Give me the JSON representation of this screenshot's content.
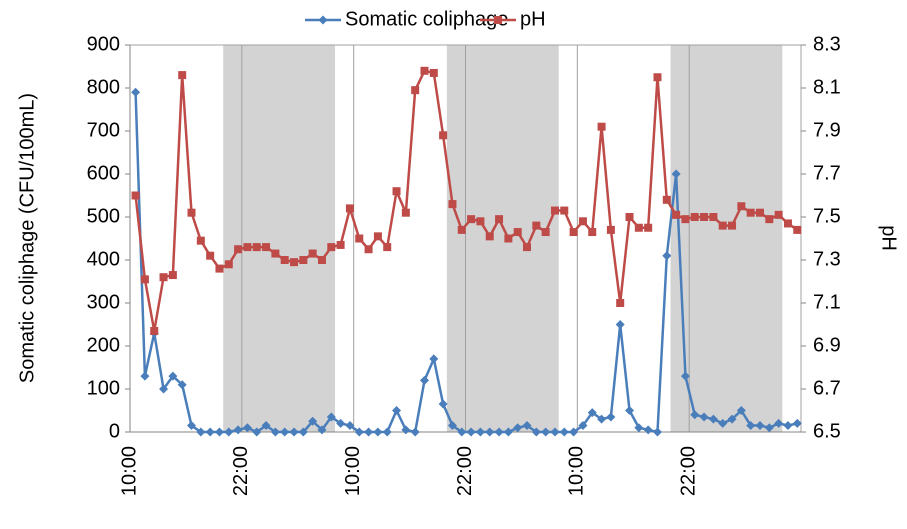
{
  "chart_data": {
    "type": "line",
    "y_label": "Somatic coliphage (CFU/100mL)",
    "y2_label": "pH",
    "x": [
      0.6,
      1.6,
      2.6,
      3.6,
      4.6,
      5.6,
      6.6,
      7.6,
      8.6,
      9.6,
      10.6,
      11.6,
      12.6,
      13.6,
      14.6,
      15.6,
      16.6,
      17.6,
      18.6,
      19.6,
      20.6,
      21.6,
      22.6,
      23.6,
      24.6,
      25.6,
      26.6,
      27.6,
      28.6,
      29.6,
      30.6,
      31.6,
      32.6,
      33.6,
      34.6,
      35.6,
      36.6,
      37.6,
      38.6,
      39.6,
      40.6,
      41.6,
      42.6,
      43.6,
      44.6,
      45.6,
      46.6,
      47.6,
      48.6,
      49.6,
      50.6,
      51.6,
      52.6,
      53.6,
      54.6,
      55.6,
      56.6,
      57.6,
      58.6,
      59.6,
      60.6,
      61.6,
      62.6,
      63.6,
      64.6,
      65.6,
      66.6,
      67.6,
      68.6,
      69.6,
      70.6,
      71.6
    ],
    "series": [
      {
        "name": "Somatic coliphage",
        "color": "#4a7ebb",
        "marker": "diamond",
        "values": [
          790,
          130,
          230,
          100,
          130,
          110,
          15,
          0,
          0,
          0,
          0,
          5,
          10,
          0,
          15,
          0,
          0,
          0,
          0,
          25,
          5,
          35,
          20,
          15,
          0,
          0,
          0,
          0,
          50,
          5,
          0,
          120,
          170,
          65,
          15,
          0,
          0,
          0,
          0,
          0,
          0,
          10,
          15,
          0,
          0,
          0,
          0,
          0,
          15,
          45,
          30,
          35,
          250,
          50,
          10,
          5,
          0,
          410,
          600,
          130,
          40,
          35,
          30,
          20,
          30,
          50,
          15,
          15,
          10,
          20,
          15,
          20
        ]
      },
      {
        "name": "pH",
        "color": "#be4b48",
        "marker": "square",
        "axis": "y2",
        "values": [
          7.6,
          7.21,
          6.97,
          7.22,
          7.23,
          8.16,
          7.52,
          7.39,
          7.32,
          7.26,
          7.28,
          7.35,
          7.36,
          7.36,
          7.36,
          7.33,
          7.3,
          7.29,
          7.3,
          7.33,
          7.3,
          7.36,
          7.37,
          7.54,
          7.4,
          7.35,
          7.41,
          7.36,
          7.62,
          7.52,
          8.09,
          8.18,
          8.17,
          7.88,
          7.56,
          7.44,
          7.49,
          7.48,
          7.41,
          7.49,
          7.4,
          7.43,
          7.36,
          7.46,
          7.43,
          7.53,
          7.53,
          7.43,
          7.48,
          7.43,
          7.92,
          7.44,
          7.1,
          7.5,
          7.45,
          7.45,
          8.15,
          7.58,
          7.51,
          7.49,
          7.5,
          7.5,
          7.5,
          7.46,
          7.46,
          7.55,
          7.52,
          7.52,
          7.49,
          7.51,
          7.47,
          7.44
        ]
      }
    ],
    "shaded_regions": [
      [
        10,
        22
      ],
      [
        34,
        46
      ],
      [
        58,
        70
      ]
    ],
    "shade_color": "#d3d3d3",
    "xlim": [
      0,
      72
    ],
    "xticks": [
      {
        "value": 0,
        "label": "10:00"
      },
      {
        "value": 12,
        "label": "22:00"
      },
      {
        "value": 24,
        "label": "10:00"
      },
      {
        "value": 36,
        "label": "22:00"
      },
      {
        "value": 48,
        "label": "10:00"
      },
      {
        "value": 60,
        "label": "22:00"
      }
    ],
    "ylim": [
      0,
      900
    ],
    "yticks": [
      0,
      100,
      200,
      300,
      400,
      500,
      600,
      700,
      800,
      900
    ],
    "y2lim": [
      6.5,
      8.3
    ],
    "y2ticks": [
      6.5,
      6.7,
      6.9,
      7.1,
      7.3,
      7.5,
      7.7,
      7.9,
      8.1,
      8.3
    ],
    "grid": "x",
    "legend": "top"
  }
}
